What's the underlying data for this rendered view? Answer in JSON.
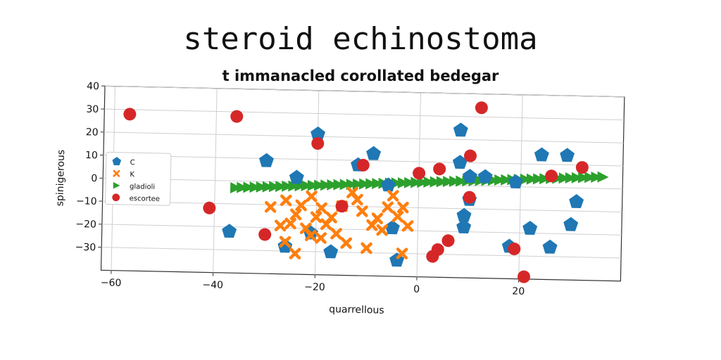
{
  "chart_data": {
    "type": "scatter",
    "title": "steroid echinostoma",
    "subtitle": "t immanacled corollated bedegar",
    "xlabel": "quarrellous",
    "ylabel": "spinigerous",
    "xlim": [
      -62,
      40
    ],
    "ylim": [
      -40,
      40
    ],
    "xticks": [
      -60,
      -40,
      -20,
      0,
      20
    ],
    "yticks": [
      -30,
      -20,
      -10,
      0,
      10,
      20,
      30,
      40
    ],
    "grid": true,
    "legend_position": "center-left",
    "series": [
      {
        "name": "C",
        "marker": "pentagon",
        "color": "#1f77b4",
        "points": [
          [
            -37,
            -22
          ],
          [
            -30,
            9
          ],
          [
            -24,
            2
          ],
          [
            -20,
            21
          ],
          [
            -12,
            8
          ],
          [
            -9,
            13
          ],
          [
            -26,
            -28
          ],
          [
            -21,
            -22
          ],
          [
            -17,
            -30
          ],
          [
            -6,
            -0.5
          ],
          [
            -5,
            -19
          ],
          [
            -4,
            -33
          ],
          [
            8,
            24
          ],
          [
            8,
            10
          ],
          [
            10,
            4
          ],
          [
            13,
            4
          ],
          [
            9,
            -13
          ],
          [
            9,
            -18
          ],
          [
            10,
            -6
          ],
          [
            19,
            2
          ],
          [
            18,
            -26
          ],
          [
            22,
            -18
          ],
          [
            24,
            14
          ],
          [
            26,
            -26
          ],
          [
            29,
            14
          ],
          [
            31,
            -6
          ],
          [
            30,
            -16
          ]
        ]
      },
      {
        "name": "K",
        "marker": "x",
        "color": "#ff7f0e",
        "points": [
          [
            -29,
            -11
          ],
          [
            -27,
            -19
          ],
          [
            -26,
            -8
          ],
          [
            -25,
            -18
          ],
          [
            -26,
            -26
          ],
          [
            -24,
            -31
          ],
          [
            -24,
            -14
          ],
          [
            -23,
            -10
          ],
          [
            -22,
            -20
          ],
          [
            -21,
            -6
          ],
          [
            -20,
            -15
          ],
          [
            -21,
            -23
          ],
          [
            -19,
            -24
          ],
          [
            -19,
            -11
          ],
          [
            -18,
            -18
          ],
          [
            -17,
            -15
          ],
          [
            -16,
            -22
          ],
          [
            -15,
            -10
          ],
          [
            -14,
            -26
          ],
          [
            -13,
            -4
          ],
          [
            -12,
            -7
          ],
          [
            -11,
            -12
          ],
          [
            -10,
            -28
          ],
          [
            -9,
            -18
          ],
          [
            -8,
            -15
          ],
          [
            -7,
            -20
          ],
          [
            -6,
            -10
          ],
          [
            -5,
            -5
          ],
          [
            -4,
            -14
          ],
          [
            -3,
            -30
          ],
          [
            -3,
            -10
          ],
          [
            -2,
            -18
          ]
        ]
      },
      {
        "name": "gladioli",
        "marker": "triangle-right",
        "color": "#2ca02c",
        "line": {
          "from": [
            -36,
            -3
          ],
          "to": [
            36,
            5
          ]
        },
        "count": 58
      },
      {
        "name": "escortee",
        "marker": "circle",
        "color": "#d62728",
        "points": [
          [
            -57,
            28
          ],
          [
            -36,
            28
          ],
          [
            -20,
            17
          ],
          [
            -11,
            8
          ],
          [
            0,
            5
          ],
          [
            4,
            7
          ],
          [
            10,
            13
          ],
          [
            12,
            34
          ],
          [
            26,
            5
          ],
          [
            32,
            9
          ],
          [
            -41,
            -12
          ],
          [
            -30,
            -23
          ],
          [
            -15,
            -10
          ],
          [
            3,
            -31
          ],
          [
            4,
            -28
          ],
          [
            6,
            -24
          ],
          [
            10,
            -5
          ],
          [
            19,
            -27
          ],
          [
            21,
            -39
          ]
        ]
      }
    ]
  }
}
